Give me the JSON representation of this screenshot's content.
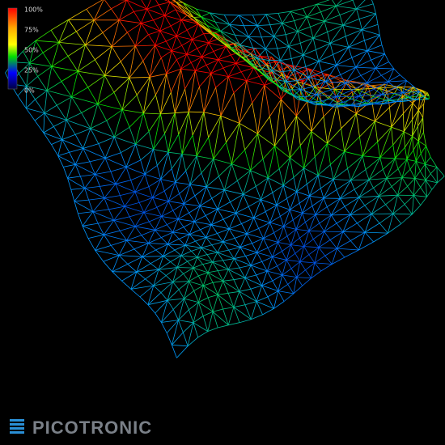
{
  "legend": {
    "ticks": [
      "100%",
      "75%",
      "50%",
      "25%",
      "0%"
    ]
  },
  "logo": {
    "text": "PICOTRONIC"
  }
}
